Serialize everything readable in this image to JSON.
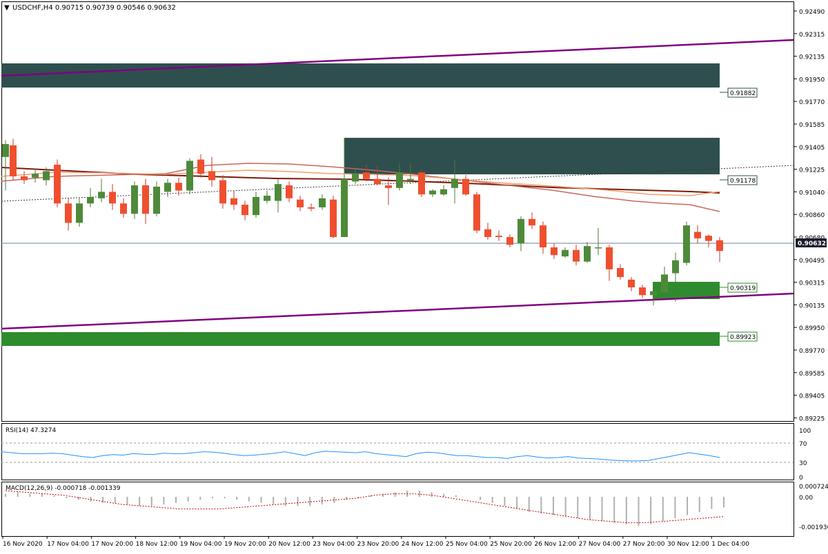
{
  "symbol_header": "USDCHF,H4  0.90715 0.90739 0.90546 0.90632",
  "price_axis_ticks": [
    "0.92490",
    "0.92315",
    "0.92135",
    "0.91950",
    "0.91770",
    "0.91585",
    "0.91405",
    "0.91225",
    "0.91040",
    "0.90860",
    "0.90680",
    "0.90495",
    "0.90315",
    "0.90135",
    "0.89950",
    "0.89770",
    "0.89585",
    "0.89405",
    "0.89225"
  ],
  "current_price": "0.90632",
  "zone_labels": {
    "z1": "0.91882",
    "z2": "0.91178",
    "z3": "0.90319",
    "z4": "0.89923"
  },
  "rsi": {
    "header": "RSI(14) 47.3274",
    "levels": [
      "70",
      "30",
      "0"
    ],
    "max_label": "100"
  },
  "macd": {
    "header": "MACD(12,26,9) -0.000718 -0.001339",
    "labels": [
      "0.000724",
      "0.00",
      "-0.001936"
    ]
  },
  "time_labels": [
    "16 Nov 2020",
    "17 Nov 04:00",
    "17 Nov 20:00",
    "18 Nov 12:00",
    "19 Nov 04:00",
    "19 Nov 20:00",
    "20 Nov 12:00",
    "23 Nov 04:00",
    "23 Nov 20:00",
    "24 Nov 12:00",
    "25 Nov 04:00",
    "25 Nov 20:00",
    "26 Nov 12:00",
    "27 Nov 04:00",
    "27 Nov 20:00",
    "30 Nov 12:00",
    "1 Dec 04:00"
  ],
  "colors": {
    "bull": "#4e8a3a",
    "bear": "#ef4f2e",
    "zone_dark": "#2f4f4f",
    "zone_green": "#2e8b2e",
    "channel": "#800080",
    "ma_dark": "#7b1a0a",
    "ma_mid": "#c8675a",
    "ma_light": "#f0a070",
    "rsi_line": "#1e90ff",
    "macd_signal": "#c00000"
  },
  "chart_data": {
    "type": "candlestick",
    "title": "USDCHF,H4",
    "x_range": [
      "16 Nov 2020",
      "1 Dec 04:00"
    ],
    "y_range": [
      0.8918,
      0.9254
    ],
    "last_candle": {
      "open": 0.90715,
      "high": 0.90739,
      "low": 0.90546,
      "close": 0.90632
    },
    "horizontal_levels": [
      0.91882,
      0.91178,
      0.90319,
      0.89923,
      0.90632
    ],
    "indicators": [
      "RSI(14) 47.3274",
      "MACD(12,26,9) -0.000718 -0.001339"
    ]
  }
}
